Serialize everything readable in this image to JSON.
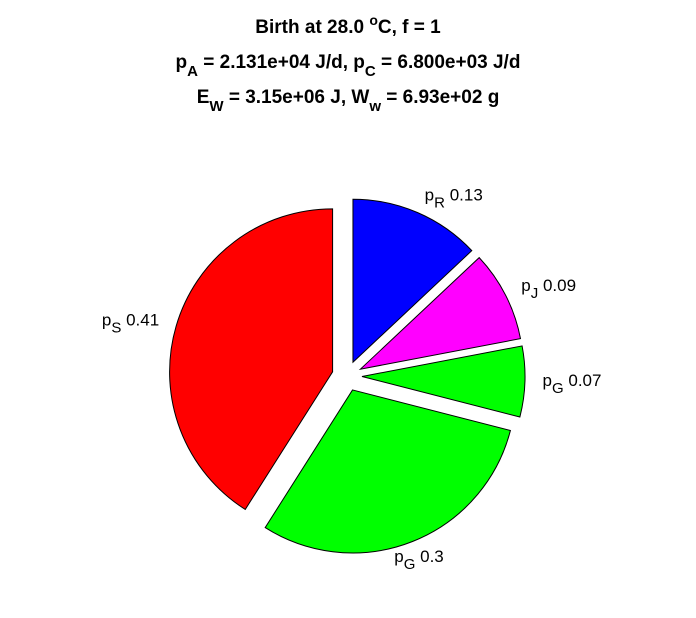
{
  "chart_data": {
    "type": "pie",
    "title": [
      [
        {
          "text": "Birth at 28.0 "
        },
        {
          "sup": "o"
        },
        {
          "text": "C, f = 1"
        }
      ],
      [
        {
          "text": "p"
        },
        {
          "sub": "A"
        },
        {
          "text": " = 2.131e+04 J/d, p"
        },
        {
          "sub": "C"
        },
        {
          "text": " = 6.800e+03 J/d"
        }
      ],
      [
        {
          "text": "E"
        },
        {
          "sub": "W"
        },
        {
          "text": " = 3.15e+06 J, W"
        },
        {
          "sub": "w"
        },
        {
          "text": " = 6.93e+02 g"
        }
      ]
    ],
    "categories": [
      {
        "text": "p",
        "sub": "R"
      },
      {
        "text": "p",
        "sub": "J"
      },
      {
        "text": "p",
        "sub": "G"
      },
      {
        "text": "p",
        "sub": "G"
      },
      {
        "text": "p",
        "sub": "S"
      }
    ],
    "values": [
      0.13,
      0.09,
      0.07,
      0.3,
      0.41
    ],
    "colors": [
      "#0000ff",
      "#ff00ff",
      "#00ff00",
      "#00ff00",
      "#ff0000"
    ],
    "explode": true
  }
}
